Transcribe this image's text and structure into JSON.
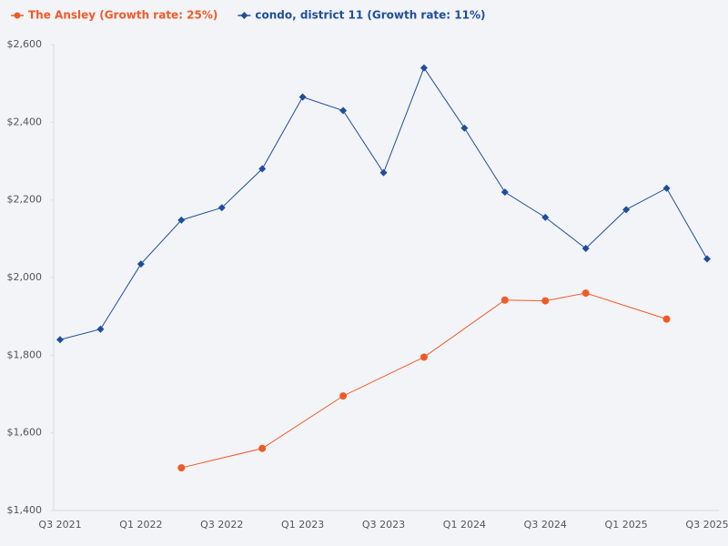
{
  "chart_data": {
    "type": "line",
    "categories": [
      "Q3 2021",
      null,
      "Q1 2022",
      null,
      "Q3 2022",
      null,
      "Q1 2023",
      null,
      "Q3 2023",
      null,
      "Q1 2024",
      null,
      "Q3 2024",
      null,
      "Q1 2025",
      null,
      "Q3 2025"
    ],
    "series": [
      {
        "name": "The Ansley (Growth rate: 25%)",
        "color": "#f05a28",
        "marker": "circle",
        "values": [
          null,
          null,
          null,
          1510,
          null,
          1560,
          null,
          1695,
          null,
          1795,
          null,
          1942,
          1940,
          1960,
          null,
          1893,
          null
        ]
      },
      {
        "name": "condo, district 11 (Growth rate: 11%)",
        "color": "#1f4e9c",
        "marker": "diamond",
        "values": [
          1840,
          1867,
          2035,
          2148,
          2180,
          2280,
          2465,
          2430,
          2270,
          2540,
          2385,
          2220,
          2155,
          2075,
          2175,
          2230,
          2048
        ]
      }
    ],
    "connect_gaps": true,
    "ylim": [
      1400,
      2600
    ],
    "yticks": [
      {
        "value": 1400,
        "label": "$1,400"
      },
      {
        "value": 1600,
        "label": "$1,600"
      },
      {
        "value": 1800,
        "label": "$1,800"
      },
      {
        "value": 2000,
        "label": "$2,000"
      },
      {
        "value": 2200,
        "label": "$2,200"
      },
      {
        "value": 2400,
        "label": "$2,400"
      },
      {
        "value": 2600,
        "label": "$2,600"
      }
    ],
    "legend": "top-left"
  }
}
